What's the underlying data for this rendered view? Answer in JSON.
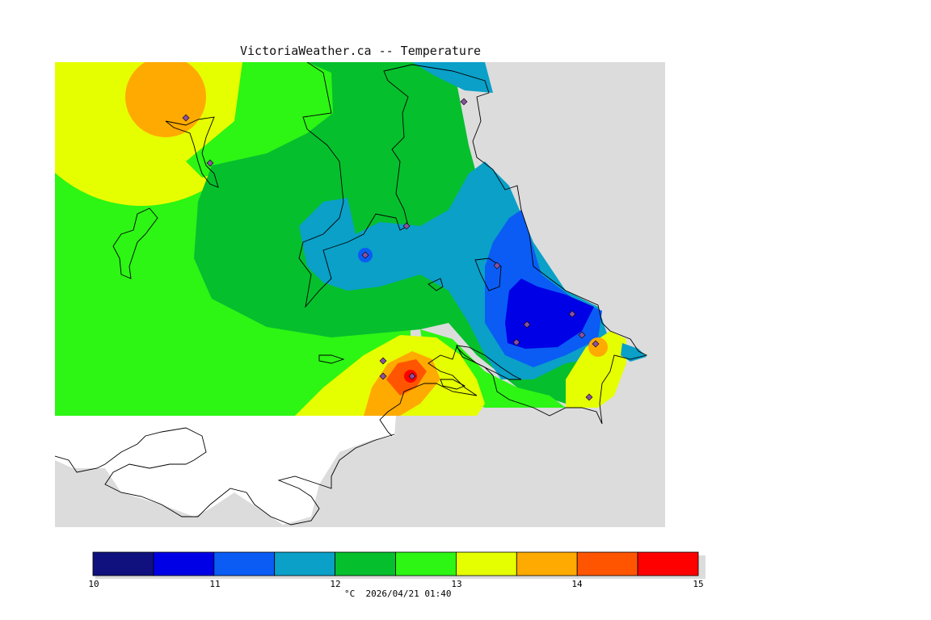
{
  "title": "VictoriaWeather.ca -- Temperature",
  "legend": {
    "unit_time": "°C  2026/04/21 01:40",
    "ticks": [
      "10",
      "11",
      "12",
      "13",
      "14",
      "15"
    ],
    "bands": [
      {
        "from": 10.0,
        "to": 10.5,
        "color": "#10107f"
      },
      {
        "from": 10.5,
        "to": 11.0,
        "color": "#0000e6"
      },
      {
        "from": 11.0,
        "to": 11.5,
        "color": "#0a5cf5"
      },
      {
        "from": 11.5,
        "to": 12.0,
        "color": "#0aa0c8"
      },
      {
        "from": 12.0,
        "to": 12.5,
        "color": "#06bf2d"
      },
      {
        "from": 12.5,
        "to": 13.0,
        "color": "#2df514"
      },
      {
        "from": 13.0,
        "to": 13.5,
        "color": "#e6ff00"
      },
      {
        "from": 13.5,
        "to": 14.0,
        "color": "#ffaa00"
      },
      {
        "from": 14.0,
        "to": 14.5,
        "color": "#ff5500"
      },
      {
        "from": 14.5,
        "to": 15.0,
        "color": "#ff0000"
      }
    ]
  },
  "colors": {
    "land_outside": "#dcdcdc",
    "water_south": "#ffffff",
    "coastline": "#000000",
    "station_marker": "#8c50a0"
  }
}
